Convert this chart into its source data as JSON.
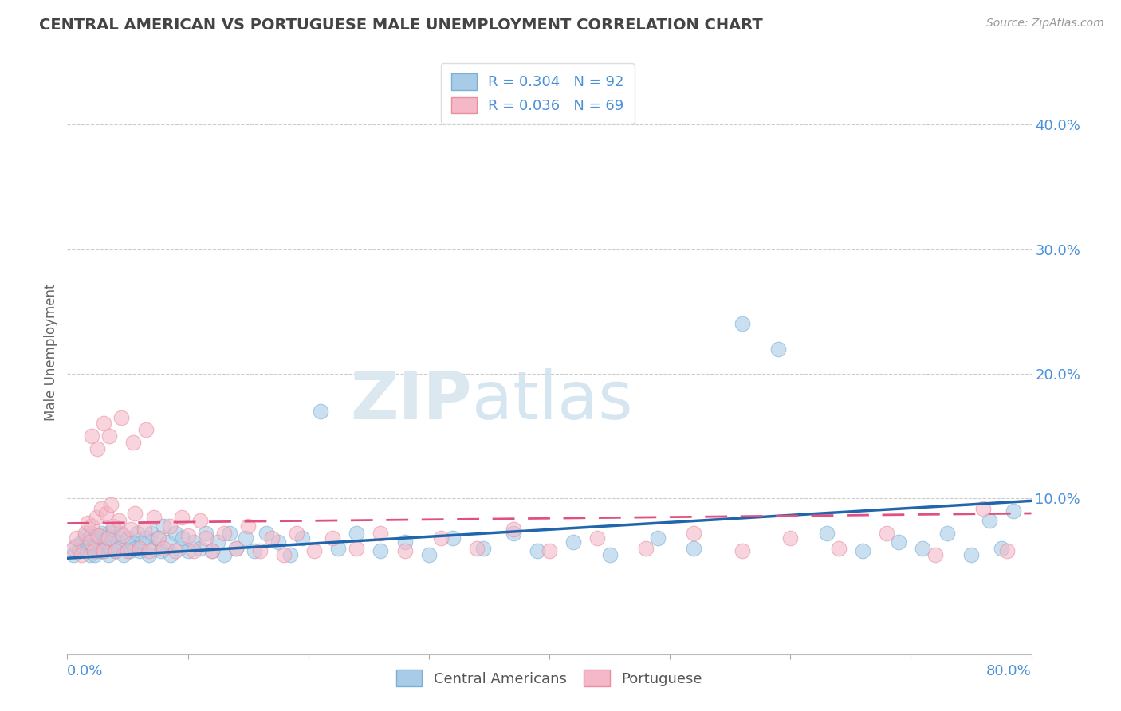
{
  "title": "CENTRAL AMERICAN VS PORTUGUESE MALE UNEMPLOYMENT CORRELATION CHART",
  "source": "Source: ZipAtlas.com",
  "ylabel": "Male Unemployment",
  "yticks": [
    0.0,
    0.1,
    0.2,
    0.3,
    0.4
  ],
  "ytick_labels": [
    "",
    "10.0%",
    "20.0%",
    "30.0%",
    "40.0%"
  ],
  "xmin": 0.0,
  "xmax": 0.8,
  "ymin": -0.025,
  "ymax": 0.46,
  "legend_labels": [
    "R = 0.304   N = 92",
    "R = 0.036   N = 69"
  ],
  "ca_x": [
    0.005,
    0.007,
    0.01,
    0.012,
    0.014,
    0.015,
    0.016,
    0.017,
    0.018,
    0.019,
    0.02,
    0.021,
    0.022,
    0.023,
    0.024,
    0.025,
    0.026,
    0.027,
    0.028,
    0.029,
    0.03,
    0.032,
    0.033,
    0.034,
    0.035,
    0.036,
    0.037,
    0.038,
    0.04,
    0.042,
    0.043,
    0.045,
    0.047,
    0.05,
    0.052,
    0.054,
    0.056,
    0.058,
    0.06,
    0.062,
    0.065,
    0.068,
    0.07,
    0.072,
    0.075,
    0.078,
    0.08,
    0.083,
    0.086,
    0.09,
    0.093,
    0.096,
    0.1,
    0.105,
    0.11,
    0.115,
    0.12,
    0.125,
    0.13,
    0.135,
    0.14,
    0.148,
    0.155,
    0.165,
    0.175,
    0.185,
    0.195,
    0.21,
    0.225,
    0.24,
    0.26,
    0.28,
    0.3,
    0.32,
    0.345,
    0.37,
    0.39,
    0.42,
    0.45,
    0.49,
    0.52,
    0.56,
    0.59,
    0.63,
    0.66,
    0.69,
    0.71,
    0.73,
    0.75,
    0.765,
    0.775,
    0.785
  ],
  "ca_y": [
    0.055,
    0.062,
    0.058,
    0.065,
    0.06,
    0.07,
    0.058,
    0.064,
    0.068,
    0.055,
    0.072,
    0.06,
    0.068,
    0.055,
    0.063,
    0.07,
    0.058,
    0.065,
    0.06,
    0.072,
    0.058,
    0.065,
    0.068,
    0.055,
    0.072,
    0.06,
    0.068,
    0.075,
    0.058,
    0.065,
    0.06,
    0.072,
    0.055,
    0.068,
    0.058,
    0.065,
    0.06,
    0.072,
    0.058,
    0.065,
    0.068,
    0.055,
    0.072,
    0.06,
    0.068,
    0.058,
    0.078,
    0.065,
    0.055,
    0.072,
    0.06,
    0.068,
    0.058,
    0.065,
    0.06,
    0.072,
    0.058,
    0.065,
    0.055,
    0.072,
    0.06,
    0.068,
    0.058,
    0.072,
    0.065,
    0.055,
    0.068,
    0.17,
    0.06,
    0.072,
    0.058,
    0.065,
    0.055,
    0.068,
    0.06,
    0.072,
    0.058,
    0.065,
    0.055,
    0.068,
    0.06,
    0.24,
    0.22,
    0.072,
    0.058,
    0.065,
    0.06,
    0.072,
    0.055,
    0.082,
    0.06,
    0.09
  ],
  "pt_x": [
    0.005,
    0.008,
    0.012,
    0.015,
    0.017,
    0.019,
    0.02,
    0.022,
    0.024,
    0.026,
    0.028,
    0.03,
    0.032,
    0.034,
    0.036,
    0.038,
    0.04,
    0.043,
    0.046,
    0.05,
    0.053,
    0.056,
    0.06,
    0.064,
    0.068,
    0.072,
    0.076,
    0.08,
    0.085,
    0.09,
    0.095,
    0.1,
    0.105,
    0.11,
    0.115,
    0.12,
    0.13,
    0.14,
    0.15,
    0.16,
    0.17,
    0.18,
    0.19,
    0.205,
    0.22,
    0.24,
    0.26,
    0.28,
    0.31,
    0.34,
    0.37,
    0.4,
    0.44,
    0.48,
    0.52,
    0.56,
    0.6,
    0.64,
    0.68,
    0.72,
    0.76,
    0.78,
    0.02,
    0.025,
    0.03,
    0.035,
    0.045,
    0.055,
    0.065
  ],
  "pt_y": [
    0.06,
    0.068,
    0.055,
    0.072,
    0.08,
    0.065,
    0.078,
    0.058,
    0.085,
    0.07,
    0.092,
    0.058,
    0.088,
    0.068,
    0.095,
    0.078,
    0.058,
    0.082,
    0.07,
    0.058,
    0.075,
    0.088,
    0.06,
    0.075,
    0.058,
    0.085,
    0.068,
    0.06,
    0.078,
    0.058,
    0.085,
    0.07,
    0.058,
    0.082,
    0.068,
    0.058,
    0.072,
    0.06,
    0.078,
    0.058,
    0.068,
    0.055,
    0.072,
    0.058,
    0.068,
    0.06,
    0.072,
    0.058,
    0.068,
    0.06,
    0.075,
    0.058,
    0.068,
    0.06,
    0.072,
    0.058,
    0.068,
    0.06,
    0.072,
    0.055,
    0.092,
    0.058,
    0.15,
    0.14,
    0.16,
    0.15,
    0.165,
    0.145,
    0.155
  ],
  "blue_line_x": [
    0.0,
    0.8
  ],
  "blue_line_y": [
    0.052,
    0.098
  ],
  "pink_line_x": [
    0.0,
    0.8
  ],
  "pink_line_y": [
    0.08,
    0.088
  ],
  "blue_color": "#a8cce8",
  "blue_edge_color": "#7bafd4",
  "pink_color": "#f4b8c8",
  "pink_edge_color": "#e8909e",
  "blue_line_color": "#2166ac",
  "pink_line_color": "#e05080",
  "grid_color": "#cccccc",
  "axis_label_color": "#4a90d9",
  "title_color": "#444444",
  "background_color": "#ffffff",
  "source_color": "#999999",
  "ylabel_color": "#666666",
  "bottom_legend_labels": [
    "Central Americans",
    "Portuguese"
  ]
}
